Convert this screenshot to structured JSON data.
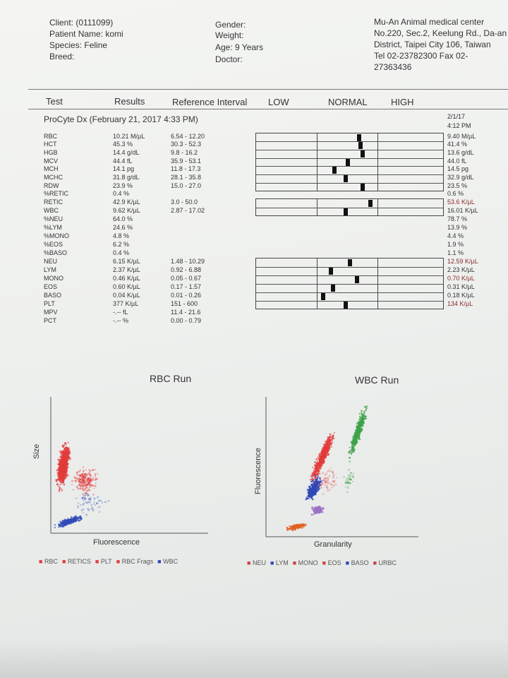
{
  "header": {
    "client": "Client: (0111099)",
    "patient": "Patient Name: komi",
    "species": "Species: Feline",
    "breed": "Breed:",
    "gender": "Gender:",
    "weight": "Weight:",
    "age": "Age: 9 Years",
    "doctor": "Doctor:"
  },
  "clinic": {
    "lines": [
      "Mu-An Animal medical center",
      "No.220, Sec.2, Keelung Rd., Da-an",
      "District, Taipei City 106, Taiwan",
      "Tel 02-23782300  Fax 02-",
      "27363436"
    ]
  },
  "columns": {
    "test": "Test",
    "results": "Results",
    "ref": "Reference Interval",
    "low": "LOW",
    "normal": "NORMAL",
    "high": "HIGH"
  },
  "run": {
    "title": "ProCyte Dx (February 21, 2017 4:33 PM)",
    "prev_date": "2/1/17",
    "prev_time": "4:12 PM"
  },
  "rows": [
    {
      "name": "RBC",
      "result": "10.21 M/µL",
      "ref": "6.54 - 12.20",
      "prev": "9.40 M/µL",
      "flag": false,
      "pos": 0.55
    },
    {
      "name": "HCT",
      "result": "45.3 %",
      "ref": "30.3 - 52.3",
      "prev": "41.4 %",
      "flag": false,
      "pos": 0.56
    },
    {
      "name": "HGB",
      "result": "14.4 g/dL",
      "ref": "9.8 - 16.2",
      "prev": "13.6 g/dL",
      "flag": false,
      "pos": 0.57
    },
    {
      "name": "MCV",
      "result": "44.4 fL",
      "ref": "35.9 - 53.1",
      "prev": "44.0 fL",
      "flag": false,
      "pos": 0.49
    },
    {
      "name": "MCH",
      "result": "14.1 pg",
      "ref": "11.8 - 17.3",
      "prev": "14.5 pg",
      "flag": false,
      "pos": 0.42
    },
    {
      "name": "MCHC",
      "result": "31.8 g/dL",
      "ref": "28.1 - 35.8",
      "prev": "32.9 g/dL",
      "flag": false,
      "pos": 0.48
    },
    {
      "name": "RDW",
      "result": "23.9 %",
      "ref": "15.0 - 27.0",
      "prev": "23.5 %",
      "flag": false,
      "pos": 0.57
    },
    {
      "name": "%RETIC",
      "result": "0.4 %",
      "ref": "",
      "prev": "0.6 %",
      "flag": false,
      "pos": null
    },
    {
      "name": "RETIC",
      "result": "42.9 K/µL",
      "ref": "3.0 - 50.0",
      "prev": "53.6 K/µL",
      "flag": true,
      "pos": 0.61
    },
    {
      "name": "WBC",
      "result": "9.62 K/µL",
      "ref": "2.87 - 17.02",
      "prev": "16.01 K/µL",
      "flag": false,
      "pos": 0.48
    },
    {
      "name": "%NEU",
      "result": "64.0 %",
      "ref": "",
      "prev": "78.7 %",
      "flag": false,
      "pos": null
    },
    {
      "name": "%LYM",
      "result": "24.6 %",
      "ref": "",
      "prev": "13.9 %",
      "flag": false,
      "pos": null
    },
    {
      "name": "%MONO",
      "result": "4.8 %",
      "ref": "",
      "prev": "4.4 %",
      "flag": false,
      "pos": null
    },
    {
      "name": "%EOS",
      "result": "6.2 %",
      "ref": "",
      "prev": "1.9 %",
      "flag": false,
      "pos": null
    },
    {
      "name": "%BASO",
      "result": "0.4 %",
      "ref": "",
      "prev": "1.1 %",
      "flag": false,
      "pos": null
    },
    {
      "name": "NEU",
      "result": "6.15 K/µL",
      "ref": "1.48 - 10.29",
      "prev": "12.59 K/µL",
      "flag": true,
      "pos": 0.5
    },
    {
      "name": "LYM",
      "result": "2.37 K/µL",
      "ref": "0.92 - 6.88",
      "prev": "2.23 K/µL",
      "flag": false,
      "pos": 0.4
    },
    {
      "name": "MONO",
      "result": "0.46 K/µL",
      "ref": "0.05 - 0.67",
      "prev": "0.70 K/µL",
      "flag": true,
      "pos": 0.54
    },
    {
      "name": "EOS",
      "result": "0.60 K/µL",
      "ref": "0.17 - 1.57",
      "prev": "0.31 K/µL",
      "flag": false,
      "pos": 0.41
    },
    {
      "name": "BASO",
      "result": "0.04 K/µL",
      "ref": "0.01 - 0.26",
      "prev": "0.18 K/µL",
      "flag": false,
      "pos": 0.36
    },
    {
      "name": "PLT",
      "result": "377 K/µL",
      "ref": "151 - 600",
      "prev": "134 K/µL",
      "flag": true,
      "pos": 0.48
    },
    {
      "name": "MPV",
      "result": "-.-- fL",
      "ref": "11.4 - 21.6",
      "prev": "",
      "flag": false,
      "pos": null
    },
    {
      "name": "PCT",
      "result": "-.-- %",
      "ref": "0.00 - 0.79",
      "prev": "",
      "flag": false,
      "pos": null
    }
  ],
  "rbc_plot": {
    "title": "RBC Run",
    "xlabel": "Fluorescence",
    "ylabel": "Size",
    "legend": [
      {
        "label": "RBC",
        "color": "#e23b3b"
      },
      {
        "label": "RETICS",
        "color": "#e23b3b"
      },
      {
        "label": "PLT",
        "color": "#e23b3b"
      },
      {
        "label": "RBC Frags",
        "color": "#e23b3b"
      },
      {
        "label": "WBC",
        "color": "#2f49b8"
      }
    ]
  },
  "wbc_plot": {
    "title": "WBC Run",
    "xlabel": "Granularity",
    "ylabel": "Fluorescence",
    "legend": [
      {
        "label": "NEU",
        "color": "#d33f3f"
      },
      {
        "label": "LYM",
        "color": "#2f49b8"
      },
      {
        "label": "MONO",
        "color": "#d33f3f"
      },
      {
        "label": "EOS",
        "color": "#d33f3f"
      },
      {
        "label": "BASO",
        "color": "#2f49b8"
      },
      {
        "label": "URBC",
        "color": "#d33f3f"
      }
    ]
  },
  "colors": {
    "ink": "#2a2a2a",
    "flag": "#8b2a2a",
    "rbc_red": "#e23b3b",
    "wbc_blue": "#2f49b8",
    "eos_green": "#3fa34a",
    "mono_purple": "#9a72c6",
    "baso_orange": "#e06020"
  }
}
